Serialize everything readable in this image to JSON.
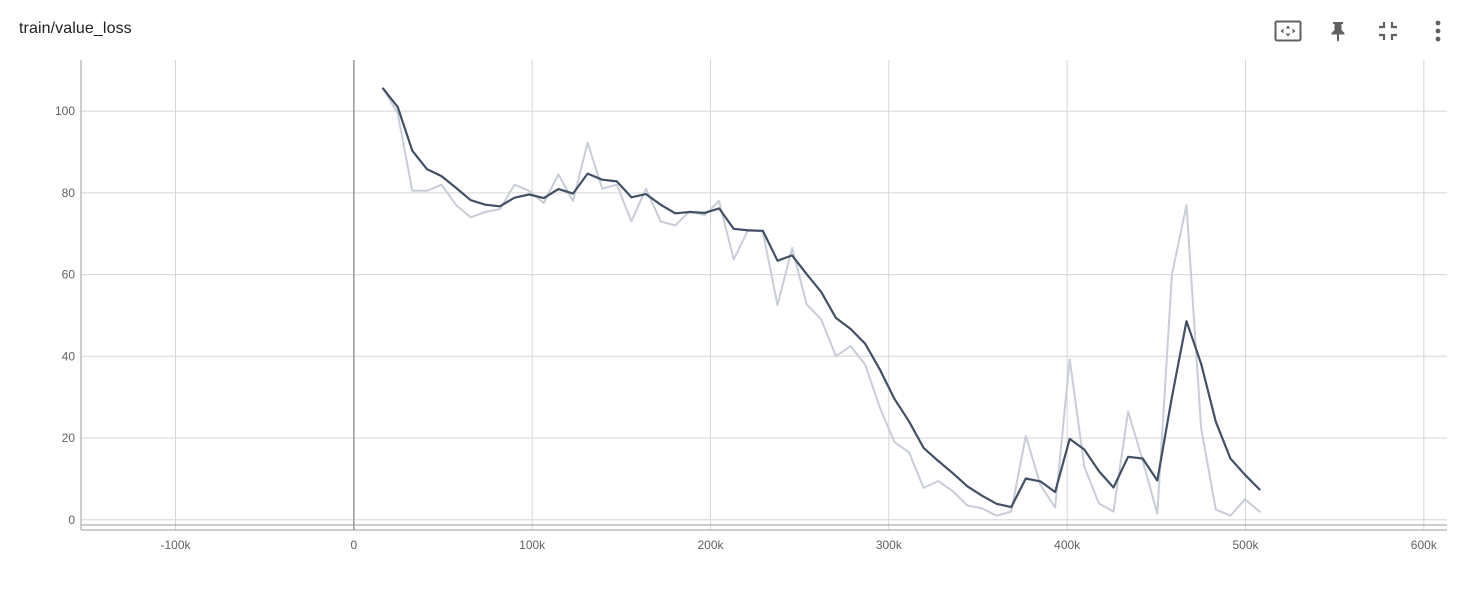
{
  "card": {
    "title": "train/value_loss"
  },
  "toolbar": {
    "buttons": [
      {
        "name": "fit-domain-button",
        "icon": "fit-to-data-icon"
      },
      {
        "name": "pin-button",
        "icon": "pin-icon"
      },
      {
        "name": "collapse-button",
        "icon": "collapse-icon"
      },
      {
        "name": "more-options-button",
        "icon": "more-vert-icon"
      }
    ]
  },
  "colors": {
    "smoothed_line": "#425066",
    "raw_line": "#c8cdd8",
    "grid": "#d6d6d6",
    "axis": "#9e9e9e",
    "tick_text": "#616161",
    "icon": "#616161"
  },
  "chart_data": {
    "type": "line",
    "title": "train/value_loss",
    "xlabel": "",
    "ylabel": "",
    "xlim": [
      -153000,
      613000
    ],
    "ylim": [
      -2.5,
      112.5
    ],
    "x_ticks": [
      -100000,
      0,
      100000,
      200000,
      300000,
      400000,
      500000,
      600000
    ],
    "x_tick_labels": [
      "-100k",
      "0",
      "100k",
      "200k",
      "300k",
      "400k",
      "500k",
      "600k"
    ],
    "y_ticks": [
      0,
      20,
      40,
      60,
      80,
      100
    ],
    "y_tick_labels": [
      "0",
      "20",
      "40",
      "60",
      "80",
      "100"
    ],
    "grid": true,
    "x": [
      16384,
      24576,
      32768,
      40960,
      49152,
      57344,
      65536,
      73728,
      81920,
      90112,
      98304,
      106496,
      114688,
      122880,
      131072,
      139264,
      147456,
      155648,
      163840,
      172032,
      180224,
      188416,
      196608,
      204800,
      212992,
      221184,
      229376,
      237568,
      245760,
      253952,
      262144,
      270336,
      278528,
      286720,
      294912,
      303104,
      311296,
      319488,
      327680,
      335872,
      344064,
      352256,
      360448,
      368640,
      376832,
      385024,
      393216,
      401408,
      409600,
      417792,
      425984,
      434176,
      442368,
      450560,
      458752,
      466944,
      475136,
      483328,
      491520,
      499712,
      507904
    ],
    "series": [
      {
        "role": "raw",
        "values": [
          105.5,
          99.5,
          80.5,
          80.5,
          82,
          77,
          74,
          75.3,
          76,
          82,
          80.5,
          77.5,
          84.5,
          78,
          92.3,
          81,
          82,
          73,
          81,
          73,
          72,
          75.5,
          74.5,
          78,
          63.7,
          71,
          70.5,
          52.5,
          66.5,
          52.7,
          49,
          40,
          42.5,
          38,
          27.5,
          19,
          16.5,
          7.8,
          9.5,
          7,
          3.5,
          2.8,
          1,
          2,
          20.5,
          8.5,
          3,
          39.3,
          13,
          4,
          2,
          26.5,
          14.5,
          1.5,
          60,
          77,
          22.5,
          2.5,
          1,
          5,
          2
        ]
      },
      {
        "role": "smoothed",
        "values": [
          105.5,
          101,
          90.3,
          85.8,
          84.1,
          81.2,
          78.2,
          77.1,
          76.7,
          78.8,
          79.6,
          78.7,
          80.9,
          79.8,
          84.7,
          83.2,
          82.8,
          78.9,
          79.7,
          77.1,
          75,
          75.3,
          75.1,
          76.2,
          71.2,
          70.8,
          70.7,
          63.4,
          64.7,
          60.1,
          55.7,
          49.4,
          46.7,
          43.1,
          36.8,
          29.6,
          24.1,
          17.6,
          14.4,
          11.4,
          8.2,
          5.9,
          3.9,
          3.1,
          10.1,
          9.4,
          6.8,
          19.8,
          17.2,
          11.9,
          7.9,
          15.4,
          15,
          9.6,
          30,
          48.6,
          38.2,
          24,
          15,
          11,
          7.4
        ]
      }
    ]
  }
}
